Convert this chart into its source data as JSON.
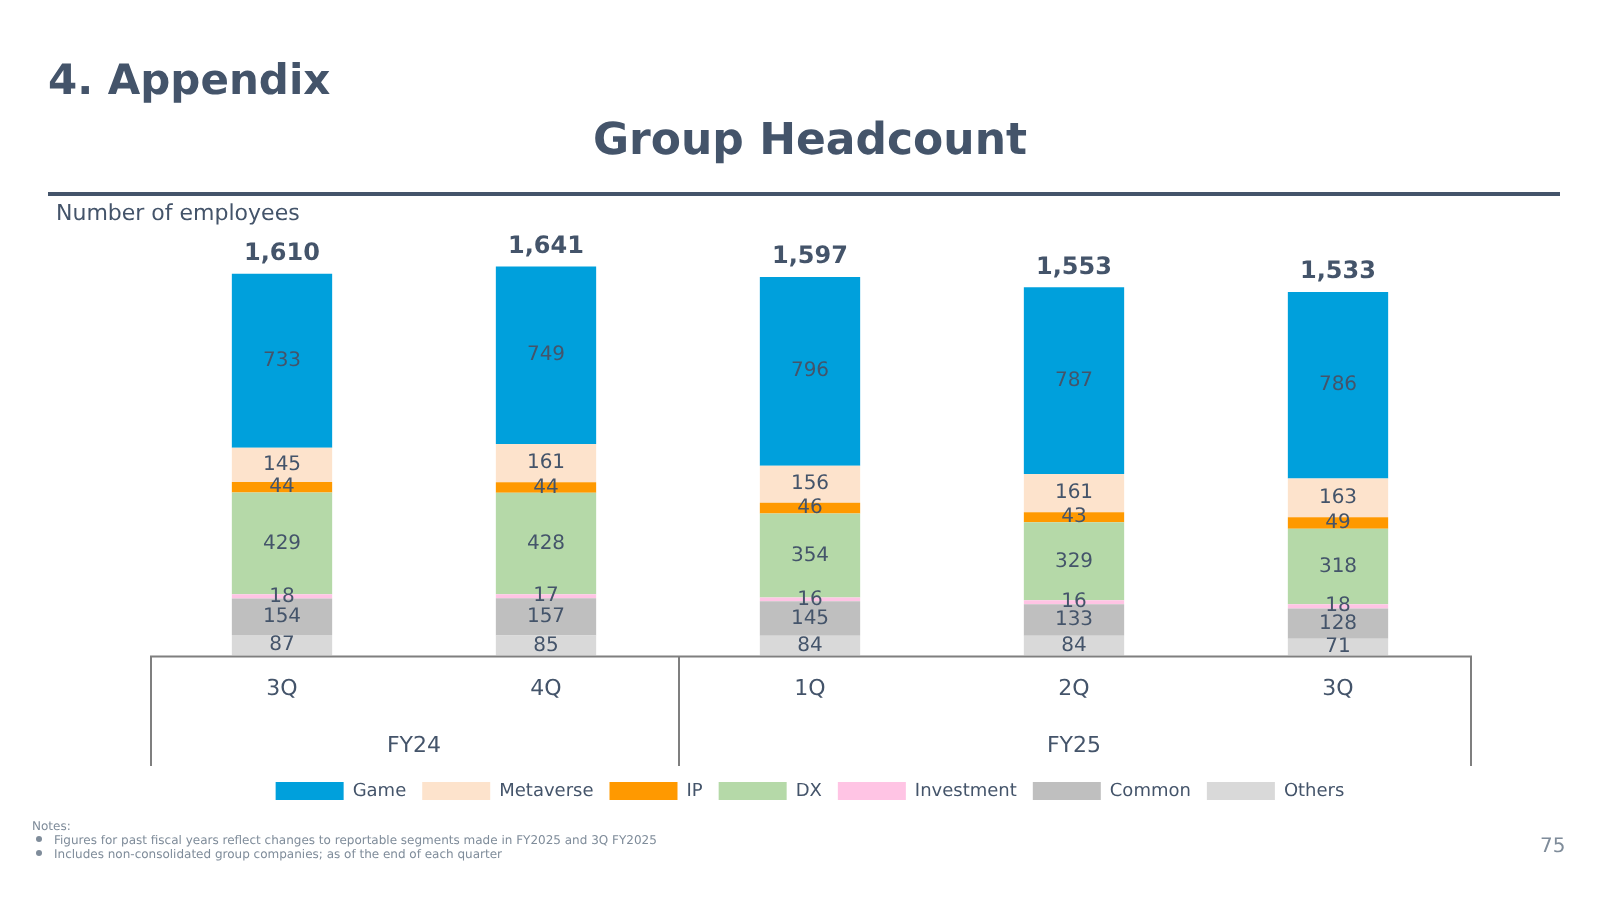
{
  "chart_data": {
    "type": "bar",
    "title": "Group Headcount",
    "ylabel": "Number of employees",
    "stacked": true,
    "data_labels": true,
    "legend": "bottom",
    "grid": false,
    "categories": [
      "3Q",
      "4Q",
      "1Q",
      "2Q",
      "3Q"
    ],
    "series": [
      {
        "name": "Others",
        "color": "#d9d9d9",
        "values": [
          87,
          85,
          84,
          84,
          71
        ]
      },
      {
        "name": "Common",
        "color": "#bfbfbf",
        "values": [
          154,
          157,
          145,
          133,
          128
        ]
      },
      {
        "name": "Investment",
        "color": "#ffc4e4",
        "values": [
          18,
          17,
          16,
          16,
          18
        ]
      },
      {
        "name": "DX",
        "color": "#b5d9a8",
        "values": [
          429,
          428,
          354,
          329,
          318
        ]
      },
      {
        "name": "IP",
        "color": "#ff9900",
        "values": [
          44,
          44,
          46,
          43,
          49
        ]
      },
      {
        "name": "Metaverse",
        "color": "#fde3cc",
        "values": [
          145,
          161,
          156,
          161,
          163
        ]
      },
      {
        "name": "Game",
        "color": "#00a0dc",
        "values": [
          733,
          749,
          796,
          787,
          786
        ]
      }
    ],
    "totals": [
      "1,610",
      "1,641",
      "1,597",
      "1,553",
      "1,533"
    ],
    "annotations": [
      "4. Appendix",
      "FY24",
      "FY25",
      "Notes:",
      "Figures for past fiscal years reflect changes to reportable segments made in FY2025 and 3Q FY2025",
      "Includes non-consolidated group companies; as of the end of each quarter",
      "75"
    ]
  }
}
